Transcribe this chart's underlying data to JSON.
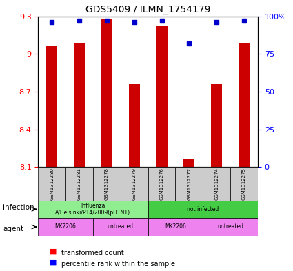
{
  "title": "GDS5409 / ILMN_1754179",
  "samples": [
    "GSM1312280",
    "GSM1312281",
    "GSM1312278",
    "GSM1312279",
    "GSM1312276",
    "GSM1312277",
    "GSM1312274",
    "GSM1312275"
  ],
  "transformed_count": [
    9.07,
    9.09,
    9.28,
    8.76,
    9.22,
    8.17,
    8.76,
    9.09
  ],
  "percentile_rank": [
    96,
    97,
    97,
    96,
    97,
    82,
    96,
    97
  ],
  "ylim_left": [
    8.1,
    9.3
  ],
  "ylim_right": [
    0,
    100
  ],
  "yticks_left": [
    8.1,
    8.4,
    8.7,
    9.0,
    9.3
  ],
  "yticks_right": [
    0,
    25,
    50,
    75,
    100
  ],
  "ytick_labels_left": [
    "8.1",
    "8.4",
    "8.7",
    "9",
    "9.3"
  ],
  "ytick_labels_right": [
    "0",
    "25",
    "50",
    "75",
    "100%"
  ],
  "infection_groups": [
    {
      "label": "Influenza\nA/Helsinki/P14/2009(pH1N1)",
      "start": 0,
      "end": 4,
      "color": "#90EE90"
    },
    {
      "label": "not infected",
      "start": 4,
      "end": 8,
      "color": "#66CC66"
    }
  ],
  "agent_groups": [
    {
      "label": "MK2206",
      "start": 0,
      "end": 2,
      "color": "#EE82EE"
    },
    {
      "label": "untreated",
      "start": 2,
      "end": 4,
      "color": "#EE82EE"
    },
    {
      "label": "MK2206",
      "start": 4,
      "end": 6,
      "color": "#EE82EE"
    },
    {
      "label": "untreated",
      "start": 6,
      "end": 8,
      "color": "#EE82EE"
    }
  ],
  "bar_color": "#CC0000",
  "dot_color": "#0000CC",
  "bar_width": 0.4,
  "grid_color": "#888888",
  "sample_box_color": "#CCCCCC",
  "infection_color_1": "#90EE90",
  "infection_color_2": "#44CC44",
  "agent_color": "#EE82EE"
}
